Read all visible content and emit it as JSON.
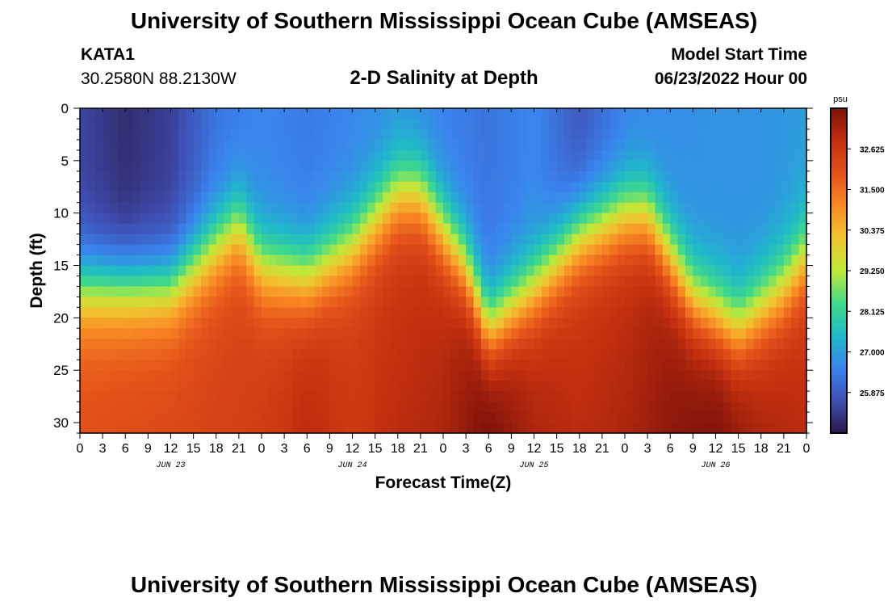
{
  "title": "University of Southern Mississippi Ocean Cube (AMSEAS)",
  "station": {
    "id": "KATA1",
    "coords": "30.2580N  88.2130W"
  },
  "subtitle": "2-D Salinity at Depth",
  "model_start": {
    "label": "Model Start Time",
    "value": "06/23/2022 Hour 00"
  },
  "footer_title": "University of Southern Mississippi Ocean Cube (AMSEAS)",
  "chart_data": {
    "type": "heatmap",
    "title": "2-D Salinity at Depth",
    "xlabel": "Forecast Time(Z)",
    "ylabel": "Depth (ft)",
    "x_hours": [
      0,
      96
    ],
    "x_tick_step_hours": 3,
    "x_tick_labels": [
      "0",
      "3",
      "6",
      "9",
      "12",
      "15",
      "18",
      "21",
      "0",
      "3",
      "6",
      "9",
      "12",
      "15",
      "18",
      "21",
      "0",
      "3",
      "6",
      "9",
      "12",
      "15",
      "18",
      "21",
      "0",
      "3",
      "6",
      "9",
      "12",
      "15",
      "18",
      "21",
      "0"
    ],
    "date_labels": [
      {
        "label": "JUN 23",
        "hour": 12
      },
      {
        "label": "JUN 24",
        "hour": 36
      },
      {
        "label": "JUN 25",
        "hour": 60
      },
      {
        "label": "JUN 26",
        "hour": 84
      }
    ],
    "y_ticks": [
      0,
      5,
      10,
      15,
      20,
      25,
      30
    ],
    "ylim": [
      0,
      31
    ],
    "y_inverted": true,
    "colorbar": {
      "unit": "psu",
      "min": 24.75,
      "max": 33.75,
      "ticks": [
        "32.625",
        "31.500",
        "30.375",
        "29.250",
        "28.125",
        "27.000",
        "25.875"
      ],
      "colors": [
        "#2a1846",
        "#3f4fb3",
        "#3a84ee",
        "#1fb9c9",
        "#3fd98a",
        "#bee93a",
        "#f0c531",
        "#f98b24",
        "#e4531a",
        "#c3300f",
        "#7f120a"
      ]
    },
    "halocline_depth_ft": {
      "hours": [
        0,
        6,
        12,
        15,
        21,
        24,
        30,
        36,
        42,
        45,
        51,
        54,
        60,
        66,
        72,
        75,
        81,
        87,
        93,
        96
      ],
      "depth": [
        17,
        17,
        17,
        15,
        11,
        15,
        16,
        13,
        8,
        8,
        15,
        21,
        17,
        12,
        10,
        10,
        18,
        21,
        17,
        14
      ]
    },
    "surface_salinity_psu": {
      "hours": [
        0,
        6,
        12,
        18,
        24,
        30,
        36,
        42,
        48,
        54,
        60,
        66,
        72,
        78,
        84,
        90,
        96
      ],
      "psu": [
        25.5,
        25.1,
        25.4,
        26.3,
        26.6,
        26.4,
        26.6,
        26.8,
        26.5,
        26.3,
        26.6,
        25.8,
        26.5,
        26.7,
        26.8,
        26.8,
        27.0
      ]
    },
    "bottom_salinity_psu": {
      "hours": [
        0,
        12,
        24,
        30,
        36,
        48,
        54,
        60,
        66,
        72,
        78,
        84,
        90,
        96
      ],
      "psu": [
        31.8,
        32.0,
        32.3,
        32.6,
        32.4,
        32.8,
        33.5,
        32.8,
        32.6,
        32.8,
        33.2,
        33.4,
        32.8,
        32.6
      ]
    }
  }
}
